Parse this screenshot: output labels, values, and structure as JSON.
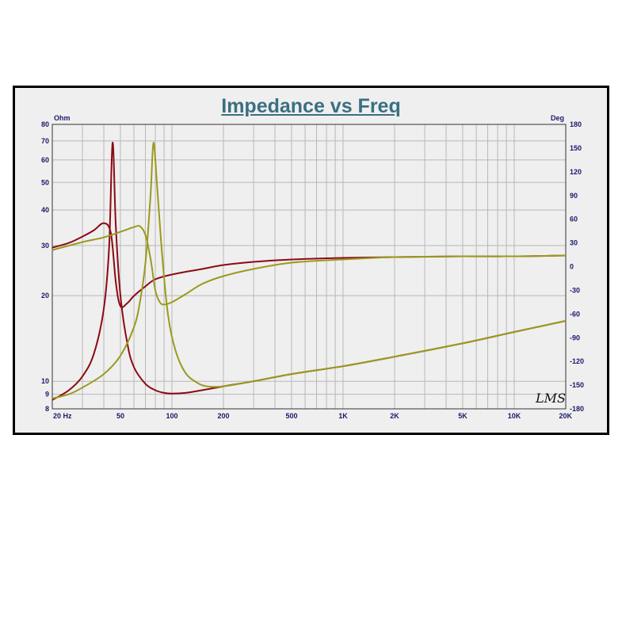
{
  "chart_data": {
    "type": "line",
    "title": "Impedance vs Freq",
    "y_left_unit": "Ohm",
    "y_right_unit": "Deg",
    "x_scale": "log",
    "y_left_scale": "log",
    "xlim": [
      20,
      20000
    ],
    "ylim_left": [
      8,
      80
    ],
    "ylim_right": [
      -180,
      180
    ],
    "x_ticks": [
      {
        "v": 20,
        "label": "20 Hz"
      },
      {
        "v": 50,
        "label": "50"
      },
      {
        "v": 100,
        "label": "100"
      },
      {
        "v": 200,
        "label": "200"
      },
      {
        "v": 500,
        "label": "500"
      },
      {
        "v": 1000,
        "label": "1K"
      },
      {
        "v": 2000,
        "label": "2K"
      },
      {
        "v": 5000,
        "label": "5K"
      },
      {
        "v": 10000,
        "label": "10K"
      },
      {
        "v": 20000,
        "label": "20K"
      }
    ],
    "y_left_ticks": [
      {
        "v": 8,
        "label": "8"
      },
      {
        "v": 9,
        "label": "9"
      },
      {
        "v": 10,
        "label": "10"
      },
      {
        "v": 20,
        "label": "20"
      },
      {
        "v": 30,
        "label": "30"
      },
      {
        "v": 40,
        "label": "40"
      },
      {
        "v": 50,
        "label": "50"
      },
      {
        "v": 60,
        "label": "60"
      },
      {
        "v": 70,
        "label": "70"
      },
      {
        "v": 80,
        "label": "80"
      }
    ],
    "y_right_ticks": [
      {
        "v": 180,
        "label": "180"
      },
      {
        "v": 150,
        "label": "150"
      },
      {
        "v": 120,
        "label": "120"
      },
      {
        "v": 90,
        "label": "90"
      },
      {
        "v": 60,
        "label": "60"
      },
      {
        "v": 30,
        "label": "30"
      },
      {
        "v": 0,
        "label": "0"
      },
      {
        "v": -30,
        "label": "-30"
      },
      {
        "v": -60,
        "label": "-60"
      },
      {
        "v": -90,
        "label": "-90"
      },
      {
        "v": -120,
        "label": "-120"
      },
      {
        "v": -150,
        "label": "-150"
      },
      {
        "v": -180,
        "label": "-180"
      }
    ],
    "grid": true,
    "watermark": "LMS",
    "series": [
      {
        "color": "#8b0a14",
        "axis": "left",
        "x": [
          20,
          25,
          30,
          35,
          40,
          43,
          45,
          47,
          50,
          55,
          60,
          70,
          80,
          90,
          100,
          120,
          150,
          200,
          300,
          500,
          1000,
          2000,
          5000,
          10000,
          20000
        ],
        "y": [
          8.6,
          9.3,
          10.4,
          12.5,
          18,
          30,
          69,
          35,
          20,
          13.5,
          11.2,
          9.8,
          9.3,
          9.1,
          9.05,
          9.1,
          9.3,
          9.6,
          10.0,
          10.6,
          11.3,
          12.2,
          13.6,
          14.9,
          16.3
        ]
      },
      {
        "color": "#8b0a14",
        "axis": "right",
        "x": [
          20,
          25,
          30,
          35,
          40,
          44,
          47,
          50,
          55,
          60,
          70,
          80,
          100,
          150,
          200,
          300,
          500,
          1000,
          2000,
          5000,
          10000,
          20000
        ],
        "y": [
          24,
          30,
          38,
          46,
          55,
          42,
          -20,
          -50,
          -46,
          -37,
          -25,
          -16,
          -10,
          -3,
          2,
          6,
          9,
          11,
          12,
          13,
          13,
          14
        ]
      },
      {
        "color": "#9a9a1e",
        "axis": "left",
        "x": [
          20,
          25,
          30,
          40,
          50,
          60,
          65,
          70,
          75,
          78,
          82,
          88,
          95,
          105,
          120,
          140,
          160,
          200,
          300,
          500,
          1000,
          2000,
          5000,
          10000,
          20000
        ],
        "y": [
          8.7,
          9.0,
          9.5,
          10.6,
          12.3,
          15.5,
          19,
          26,
          45,
          69,
          48,
          27,
          17,
          12.8,
          10.7,
          9.9,
          9.6,
          9.6,
          10.0,
          10.6,
          11.3,
          12.2,
          13.6,
          14.9,
          16.3
        ]
      },
      {
        "color": "#9a9a1e",
        "axis": "right",
        "x": [
          20,
          30,
          40,
          50,
          60,
          65,
          70,
          75,
          80,
          85,
          90,
          100,
          120,
          150,
          200,
          300,
          500,
          1000,
          2000,
          5000,
          10000,
          20000
        ],
        "y": [
          21,
          31,
          37,
          44,
          50,
          51,
          40,
          10,
          -30,
          -45,
          -48,
          -45,
          -35,
          -22,
          -12,
          -3,
          5,
          9,
          12,
          13,
          13,
          14
        ]
      }
    ]
  }
}
